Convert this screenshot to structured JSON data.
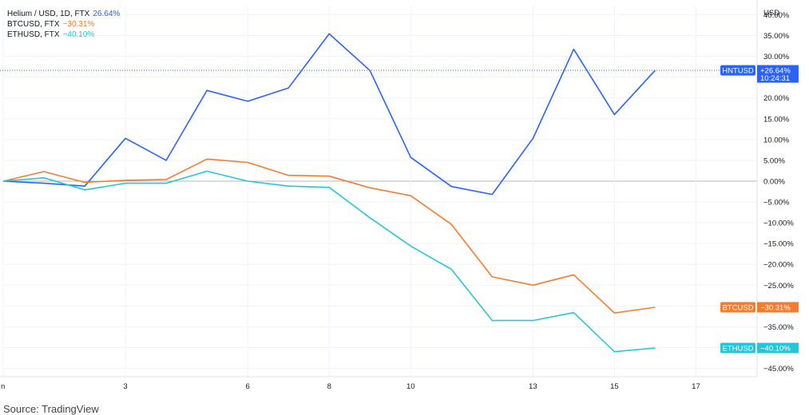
{
  "chart_data": {
    "type": "line",
    "currency_label": "USD",
    "x_tick_labels": [
      "n",
      "3",
      "6",
      "8",
      "10",
      "13",
      "15",
      "17"
    ],
    "x_tick_values": [
      0,
      3,
      6,
      8,
      10,
      13,
      15,
      17
    ],
    "xlim": [
      0,
      18.5
    ],
    "y_tick_labels": [
      "40.00%",
      "35.00%",
      "30.00%",
      "25.00%",
      "20.00%",
      "15.00%",
      "10.00%",
      "5.00%",
      "0.00%",
      "−5.00%",
      "−10.00%",
      "−15.00%",
      "−20.00%",
      "−25.00%",
      "−30.00%",
      "−35.00%",
      "−40.00%",
      "−45.00%"
    ],
    "y_tick_values": [
      40,
      35,
      30,
      25,
      20,
      15,
      10,
      5,
      0,
      -5,
      -10,
      -15,
      -20,
      -25,
      -30,
      -35,
      -40,
      -45
    ],
    "ylim": [
      -47,
      42
    ],
    "x": [
      0,
      1,
      2,
      3,
      4,
      5,
      6,
      7,
      8,
      9,
      10,
      11,
      12,
      13,
      14,
      15,
      16,
      17
    ],
    "series": [
      {
        "key": "hnt",
        "name": "Helium / USD, 1D, FTX",
        "legend_value": "26.64%",
        "color": "#2962ff",
        "tag_label": "HNTUSD",
        "tag_value": "+26.64%",
        "tag_time": "10:24:31",
        "values": [
          0,
          -0.5,
          -1.2,
          10.3,
          5,
          21.8,
          19.2,
          22.4,
          35.4,
          26.6,
          5.7,
          -1.3,
          -3.2,
          10.3,
          31.7,
          16,
          26.64,
          null
        ]
      },
      {
        "key": "btc",
        "name": "BTCUSD, FTX",
        "legend_value": "−30.31%",
        "color": "#f57c2f",
        "tag_label": "BTCUSD",
        "tag_value": "−30.31%",
        "values": [
          0,
          2.3,
          -0.3,
          0.2,
          0.4,
          5.3,
          4.5,
          1.4,
          1.2,
          -1.6,
          -3.5,
          -10.4,
          -23,
          -25,
          -22.5,
          -31.7,
          -30.31,
          null
        ]
      },
      {
        "key": "eth",
        "name": "ETHUSD, FTX",
        "legend_value": "−40.10%",
        "color": "#26c6da",
        "tag_label": "ETHUSD",
        "tag_value": "−40.10%",
        "values": [
          0,
          0.8,
          -2.1,
          -0.5,
          -0.5,
          2.4,
          0,
          -1.2,
          -1.5,
          -8.8,
          -15.6,
          -21.2,
          -33.5,
          -33.5,
          -31.6,
          -41,
          -40.1,
          null
        ]
      }
    ]
  },
  "source_text": "Source: TradingView"
}
